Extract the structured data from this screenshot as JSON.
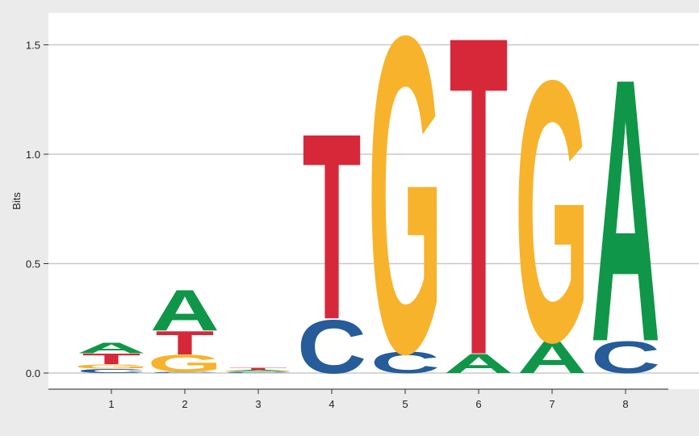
{
  "chart_data": {
    "type": "sequence-logo",
    "title": "",
    "xlabel": "",
    "ylabel": "Bits",
    "ylim": [
      0,
      1.6
    ],
    "yticks": [
      "0.0",
      "0.5",
      "1.0",
      "1.5"
    ],
    "ytick_values": [
      0,
      0.5,
      1.0,
      1.5
    ],
    "positions": [
      "1",
      "2",
      "3",
      "4",
      "5",
      "6",
      "7",
      "8"
    ],
    "grid": true,
    "colors": {
      "A": "#109648",
      "C": "#255c99",
      "G": "#f7b32b",
      "T": "#d62839"
    },
    "columns": [
      {
        "position": "1",
        "stack": [
          {
            "letter": "C",
            "height": 0.02
          },
          {
            "letter": "G",
            "height": 0.02
          },
          {
            "letter": "T",
            "height": 0.05
          },
          {
            "letter": "A",
            "height": 0.05
          }
        ]
      },
      {
        "position": "2",
        "stack": [
          {
            "letter": "C",
            "height": 0.005
          },
          {
            "letter": "G",
            "height": 0.08
          },
          {
            "letter": "T",
            "height": 0.11
          },
          {
            "letter": "A",
            "height": 0.19
          }
        ]
      },
      {
        "position": "3",
        "stack": [
          {
            "letter": "C",
            "height": 0.005
          },
          {
            "letter": "G",
            "height": 0.005
          },
          {
            "letter": "A",
            "height": 0.005
          },
          {
            "letter": "T",
            "height": 0.01
          }
        ]
      },
      {
        "position": "4",
        "stack": [
          {
            "letter": "C",
            "height": 0.25
          },
          {
            "letter": "T",
            "height": 0.87
          }
        ]
      },
      {
        "position": "5",
        "stack": [
          {
            "letter": "C",
            "height": 0.1
          },
          {
            "letter": "G",
            "height": 1.48
          }
        ]
      },
      {
        "position": "6",
        "stack": [
          {
            "letter": "A",
            "height": 0.09
          },
          {
            "letter": "T",
            "height": 1.49
          }
        ]
      },
      {
        "position": "7",
        "stack": [
          {
            "letter": "A",
            "height": 0.15
          },
          {
            "letter": "G",
            "height": 1.22
          }
        ]
      },
      {
        "position": "8",
        "stack": [
          {
            "letter": "C",
            "height": 0.15
          },
          {
            "letter": "A",
            "height": 1.23
          }
        ]
      }
    ]
  }
}
